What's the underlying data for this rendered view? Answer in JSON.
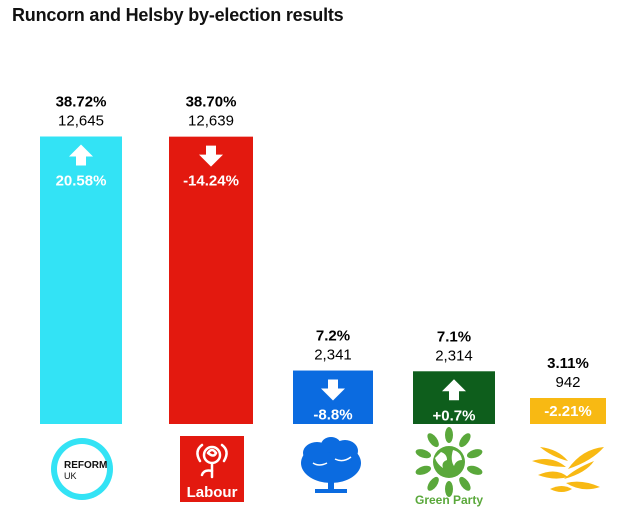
{
  "title": "Runcorn and Helsby by-election results",
  "chart_data": {
    "type": "bar",
    "title": "Runcorn and Helsby by-election results",
    "categories": [
      "Reform UK",
      "Labour",
      "Conservative",
      "Green Party",
      "Liberal Democrats"
    ],
    "values": [
      38.72,
      38.7,
      7.2,
      7.1,
      3.11
    ],
    "value_labels": [
      "38.72%",
      "38.70%",
      "7.2%",
      "7.1%",
      "3.11%"
    ],
    "votes": [
      "12,645",
      "12,639",
      "2,341",
      "2,314",
      "942"
    ],
    "changes": [
      "20.58%",
      "-14.24%",
      "-8.8%",
      "+0.7%",
      "-2.21%"
    ],
    "change_direction": [
      "up",
      "down",
      "down",
      "up",
      "none"
    ],
    "colors": [
      "#33e3f5",
      "#e3190f",
      "#0b6be0",
      "#0e5e1c",
      "#f8b913"
    ],
    "logos": {
      "reform": {
        "icon": "reform-uk-arrow-logo",
        "line1": "REFORM",
        "line2": "UK",
        "color": "#33e3f5"
      },
      "labour": {
        "icon": "labour-rose-logo",
        "text": "Labour",
        "color": "#e3190f"
      },
      "conservative": {
        "icon": "conservative-tree-logo",
        "color": "#0b6be0"
      },
      "green": {
        "icon": "green-party-globe-logo",
        "text": "Green Party",
        "color": "#5aa83b"
      },
      "libdem": {
        "icon": "libdem-bird-logo",
        "color": "#f8b913"
      }
    },
    "ylim": [
      0,
      40
    ],
    "grid": false,
    "legend": "none"
  }
}
